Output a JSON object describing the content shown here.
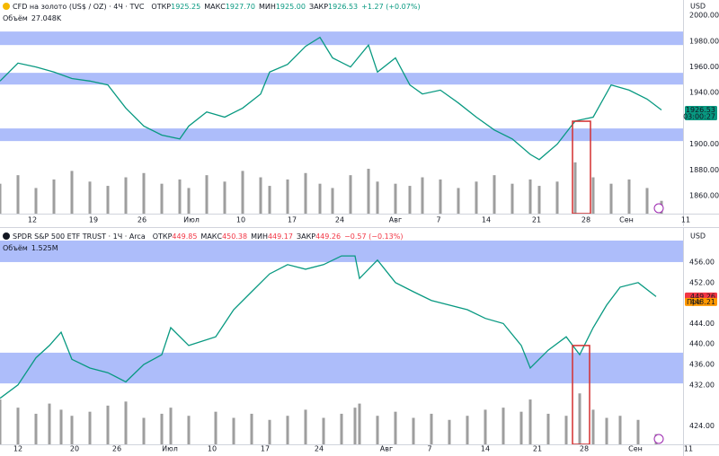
{
  "chart_data": [
    {
      "type": "line",
      "title": "CFD на золото (US$ / OZ) · 4Ч · TVC",
      "ohlc": [
        {
          "label": "ОТКР",
          "value": "1925.25"
        },
        {
          "label": "МАКС",
          "value": "1927.70"
        },
        {
          "label": "МИН",
          "value": "1925.00"
        },
        {
          "label": "ЗАКР",
          "value": "1926.53"
        }
      ],
      "change": "+1.27 (+0.07%)",
      "header_value_color": "#089981",
      "volume_label": "Объём",
      "volume_total": "27.048K",
      "currency": "USD",
      "color": "#089981",
      "x": [
        0,
        5,
        10,
        15,
        20,
        25,
        30,
        35,
        40,
        45,
        50,
        52.5,
        57.5,
        62.5,
        67.5,
        72.5,
        75,
        80,
        85,
        89,
        92.5,
        97.5,
        102.5,
        105,
        110,
        114,
        117.5,
        122.5,
        127.5,
        132.5,
        137.5,
        142.5,
        147.5,
        150,
        155,
        160,
        165,
        170,
        175,
        180,
        184
      ],
      "values": [
        1949,
        1963,
        1960,
        1956,
        1951,
        1949,
        1946,
        1928,
        1914,
        1907,
        1904,
        1914,
        1925,
        1921,
        1928,
        1939,
        1956,
        1962,
        1976,
        1983,
        1967,
        1960,
        1977,
        1956,
        1967,
        1946,
        1939,
        1942,
        1932,
        1921,
        1911,
        1904,
        1892,
        1888,
        1900,
        1918,
        1921,
        1946,
        1942,
        1935,
        1926.53
      ],
      "volume": {
        "color": "#9e9e9e",
        "values": [
          14,
          18,
          12,
          16,
          20,
          15,
          13,
          17,
          19,
          14,
          16,
          12,
          18,
          15,
          20,
          17,
          13,
          16,
          19,
          14,
          12,
          18,
          21,
          15,
          14,
          13,
          17,
          16,
          12,
          15,
          18,
          14,
          16,
          13,
          15,
          24,
          17,
          14,
          16,
          12,
          6
        ]
      },
      "y2lim": [
        0,
        100
      ],
      "xlim": [
        0,
        190
      ],
      "xticks": [
        {
          "value": 9,
          "label": "12"
        },
        {
          "value": 26,
          "label": "19"
        },
        {
          "value": 39.5,
          "label": "26"
        },
        {
          "value": 53.25,
          "label": "Июл"
        },
        {
          "value": 67,
          "label": "10"
        },
        {
          "value": 81.25,
          "label": "17"
        },
        {
          "value": 94.5,
          "label": "24"
        },
        {
          "value": 110,
          "label": "Авг"
        },
        {
          "value": 122,
          "label": "7"
        },
        {
          "value": 135.25,
          "label": "14"
        },
        {
          "value": 149.25,
          "label": "21"
        },
        {
          "value": 163,
          "label": "28"
        },
        {
          "value": 174.25,
          "label": "Сен"
        },
        {
          "value": 190.75,
          "label": "11"
        }
      ],
      "ylim": [
        1846,
        2012
      ],
      "yticks": [
        {
          "value": 2000,
          "label": "2000.00"
        },
        {
          "value": 1980,
          "label": "1980.00"
        },
        {
          "value": 1960,
          "label": "1960.00"
        },
        {
          "value": 1940,
          "label": "1940.00"
        },
        {
          "value": 1900,
          "label": "1900.00"
        },
        {
          "value": 1880,
          "label": "1880.00"
        },
        {
          "value": 1860,
          "label": "1860.00"
        }
      ],
      "zones": [
        {
          "from": 1977,
          "to": 1987.5
        },
        {
          "from": 1946.3,
          "to": 1955.4
        },
        {
          "from": 1902.4,
          "to": 1912.2
        }
      ],
      "zone_color": "#adbdfa",
      "highlight": {
        "x": [
          159.25,
          164.25
        ],
        "y": [
          1917.8,
          1846
        ],
        "color": "#d32f2f"
      },
      "price_tags": [
        {
          "value": 1926.53,
          "label": "1926.53",
          "sub": "03:00:27",
          "color": "#089981"
        }
      ]
    },
    {
      "type": "line",
      "title": "SPDR S&P 500 ETF TRUST · 1Ч · Arca",
      "ohlc": [
        {
          "label": "ОТКР",
          "value": "449.85"
        },
        {
          "label": "МАКС",
          "value": "450.38"
        },
        {
          "label": "МИН",
          "value": "449.17"
        },
        {
          "label": "ЗАКР",
          "value": "449.26"
        }
      ],
      "change": "−0.57 (−0.13%)",
      "header_value_color": "#f23645",
      "volume_label": "Объём",
      "volume_total": "1.525M",
      "currency": "USD",
      "color": "#089981",
      "x": [
        0,
        5,
        10,
        13.75,
        17,
        20,
        25,
        30,
        35,
        40,
        45,
        47.5,
        52.5,
        60,
        65,
        70,
        75,
        80,
        85,
        90,
        95,
        98.75,
        100,
        105,
        110,
        115,
        120,
        125,
        130,
        135,
        140,
        145,
        147.5,
        152.5,
        157.5,
        161.25,
        165,
        168.75,
        172.5,
        177.5,
        182.5
      ],
      "values": [
        429.4,
        432,
        437.3,
        439.7,
        442.3,
        437,
        435.3,
        434.4,
        432.6,
        436,
        437.9,
        443.2,
        439.7,
        441.4,
        446.7,
        450.2,
        453.7,
        455.5,
        454.6,
        455.5,
        457.2,
        457.2,
        452.8,
        456.4,
        452,
        450.2,
        448.5,
        447.6,
        446.7,
        445,
        444,
        439.7,
        435.3,
        438.8,
        441.4,
        437.9,
        443.2,
        447.6,
        451.1,
        452,
        449.26
      ],
      "volume": {
        "color": "#9e9e9e",
        "values": [
          22,
          18,
          15,
          20,
          17,
          14,
          16,
          19,
          21,
          13,
          15,
          18,
          14,
          16,
          13,
          15,
          12,
          14,
          17,
          13,
          15,
          18,
          20,
          14,
          16,
          13,
          15,
          12,
          14,
          17,
          18,
          16,
          22,
          15,
          14,
          25,
          17,
          13,
          14,
          12,
          5
        ]
      },
      "y2lim": [
        0,
        100
      ],
      "xlim": [
        0,
        190
      ],
      "xticks": [
        {
          "value": 5,
          "label": "12"
        },
        {
          "value": 20.75,
          "label": "20"
        },
        {
          "value": 32.5,
          "label": "26"
        },
        {
          "value": 47.25,
          "label": "Июл"
        },
        {
          "value": 59,
          "label": "10"
        },
        {
          "value": 73.75,
          "label": "17"
        },
        {
          "value": 88.75,
          "label": "24"
        },
        {
          "value": 107.5,
          "label": "Авг"
        },
        {
          "value": 119.5,
          "label": "7"
        },
        {
          "value": 135,
          "label": "14"
        },
        {
          "value": 149.5,
          "label": "21"
        },
        {
          "value": 162.5,
          "label": "28"
        },
        {
          "value": 176.75,
          "label": "Сен"
        },
        {
          "value": 191.5,
          "label": "11"
        }
      ],
      "ylim": [
        420.4,
        460.2
      ],
      "yticks": [
        {
          "value": 456,
          "label": "456.00"
        },
        {
          "value": 452,
          "label": "452.00"
        },
        {
          "value": 444,
          "label": "444.00"
        },
        {
          "value": 440,
          "label": "440.00"
        },
        {
          "value": 436,
          "label": "436.00"
        },
        {
          "value": 432,
          "label": "432.00"
        },
        {
          "value": 424,
          "label": "424.00"
        }
      ],
      "zones": [
        {
          "from": 456,
          "to": 460.2
        },
        {
          "from": 432.3,
          "to": 438.3
        }
      ],
      "zone_color": "#adbdfa",
      "highlight": {
        "x": [
          159.25,
          164
        ],
        "y": [
          439.7,
          420.4
        ],
        "color": "#d32f2f"
      },
      "price_tags": [
        {
          "value": 449.26,
          "label": "449.26",
          "color": "#f23645"
        },
        {
          "value": 448.21,
          "label": "448.21",
          "prefix": "Пре",
          "color": "#ff9800"
        }
      ]
    }
  ]
}
